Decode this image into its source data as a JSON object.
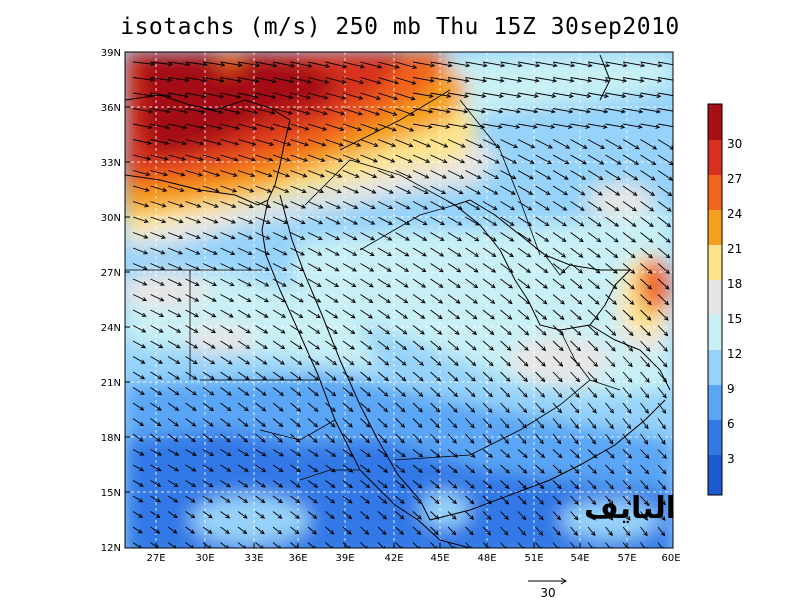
{
  "title": "isotachs (m/s) 250 mb Thu 15Z 30sep2010",
  "map": {
    "lon_ticks": [
      "27E",
      "30E",
      "33E",
      "36E",
      "39E",
      "42E",
      "45E",
      "48E",
      "51E",
      "54E",
      "57E",
      "60E"
    ],
    "lat_ticks": [
      "39N",
      "36N",
      "33N",
      "30N",
      "27N",
      "24N",
      "21N",
      "18N",
      "15N",
      "12N"
    ],
    "lon_range": [
      24,
      60
    ],
    "lat_range": [
      12,
      39
    ]
  },
  "colorbar": {
    "labels": [
      "30",
      "27",
      "24",
      "21",
      "18",
      "15",
      "12",
      "9",
      "6",
      "3"
    ],
    "colors": [
      "#a50f15",
      "#d7301f",
      "#f0641e",
      "#f5a01e",
      "#fde48c",
      "#e6e6e6",
      "#c8f0f5",
      "#96d2fa",
      "#5aa5f5",
      "#3278e6",
      "#1e5ad2"
    ]
  },
  "reference_vector": {
    "label": "30"
  },
  "watermark": "النايف"
}
